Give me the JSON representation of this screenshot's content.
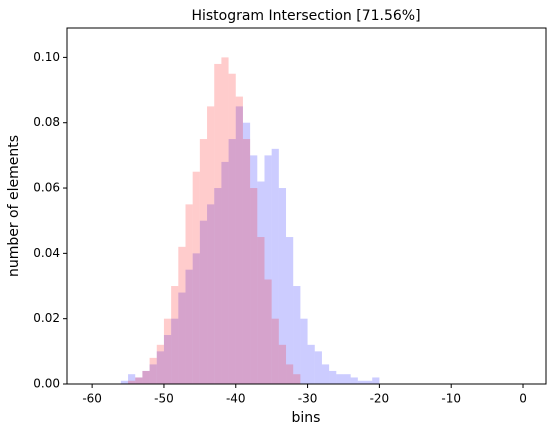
{
  "chart_data": {
    "type": "histogram",
    "title": "Histogram Intersection [71.56%]",
    "x_label": "bins",
    "y_label": "number of elements",
    "xlim": [
      -63.5,
      3.2
    ],
    "ylim": [
      0,
      0.109
    ],
    "xticks": [
      -60,
      -50,
      -40,
      -30,
      -20,
      -10,
      0
    ],
    "yticks": [
      {
        "value": 0,
        "label": "0.00"
      },
      {
        "value": 0.02,
        "label": "0.02"
      },
      {
        "value": 0.04,
        "label": "0.04"
      },
      {
        "value": 0.06,
        "label": "0.06"
      },
      {
        "value": 0.08,
        "label": "0.08"
      },
      {
        "value": 0.1,
        "label": "0.10"
      }
    ],
    "series": [
      {
        "color": "rgba(0,0,255,0.2)",
        "bins": [
          -56,
          -55,
          -54,
          -53,
          -52,
          -51,
          -50,
          -49,
          -48,
          -47,
          -46,
          -45,
          -44,
          -43,
          -42,
          -41,
          -40,
          -39,
          -38,
          -37,
          -36,
          -35,
          -34,
          -33,
          -32,
          -31,
          -30,
          -29,
          -28,
          -27,
          -26,
          -25,
          -24,
          -23,
          -22,
          -21,
          -20
        ],
        "values": [
          0.001,
          0.003,
          0.002,
          0.004,
          0.006,
          0.01,
          0.015,
          0.02,
          0.028,
          0.035,
          0.04,
          0.05,
          0.055,
          0.06,
          0.068,
          0.075,
          0.085,
          0.08,
          0.07,
          0.062,
          0.07,
          0.072,
          0.06,
          0.045,
          0.03,
          0.02,
          0.012,
          0.01,
          0.006,
          0.004,
          0.003,
          0.003,
          0.002,
          0.001,
          0.001,
          0.002
        ]
      },
      {
        "color": "rgba(255,0,0,0.2)",
        "bins": [
          -55,
          -54,
          -53,
          -52,
          -51,
          -50,
          -49,
          -48,
          -47,
          -46,
          -45,
          -44,
          -43,
          -42,
          -41,
          -40,
          -39,
          -38,
          -37,
          -36,
          -35,
          -34,
          -33,
          -32,
          -31
        ],
        "values": [
          0.001,
          0.002,
          0.004,
          0.008,
          0.012,
          0.02,
          0.03,
          0.042,
          0.055,
          0.065,
          0.075,
          0.085,
          0.098,
          0.1,
          0.095,
          0.088,
          0.075,
          0.06,
          0.045,
          0.032,
          0.02,
          0.012,
          0.006,
          0.003
        ]
      }
    ]
  }
}
